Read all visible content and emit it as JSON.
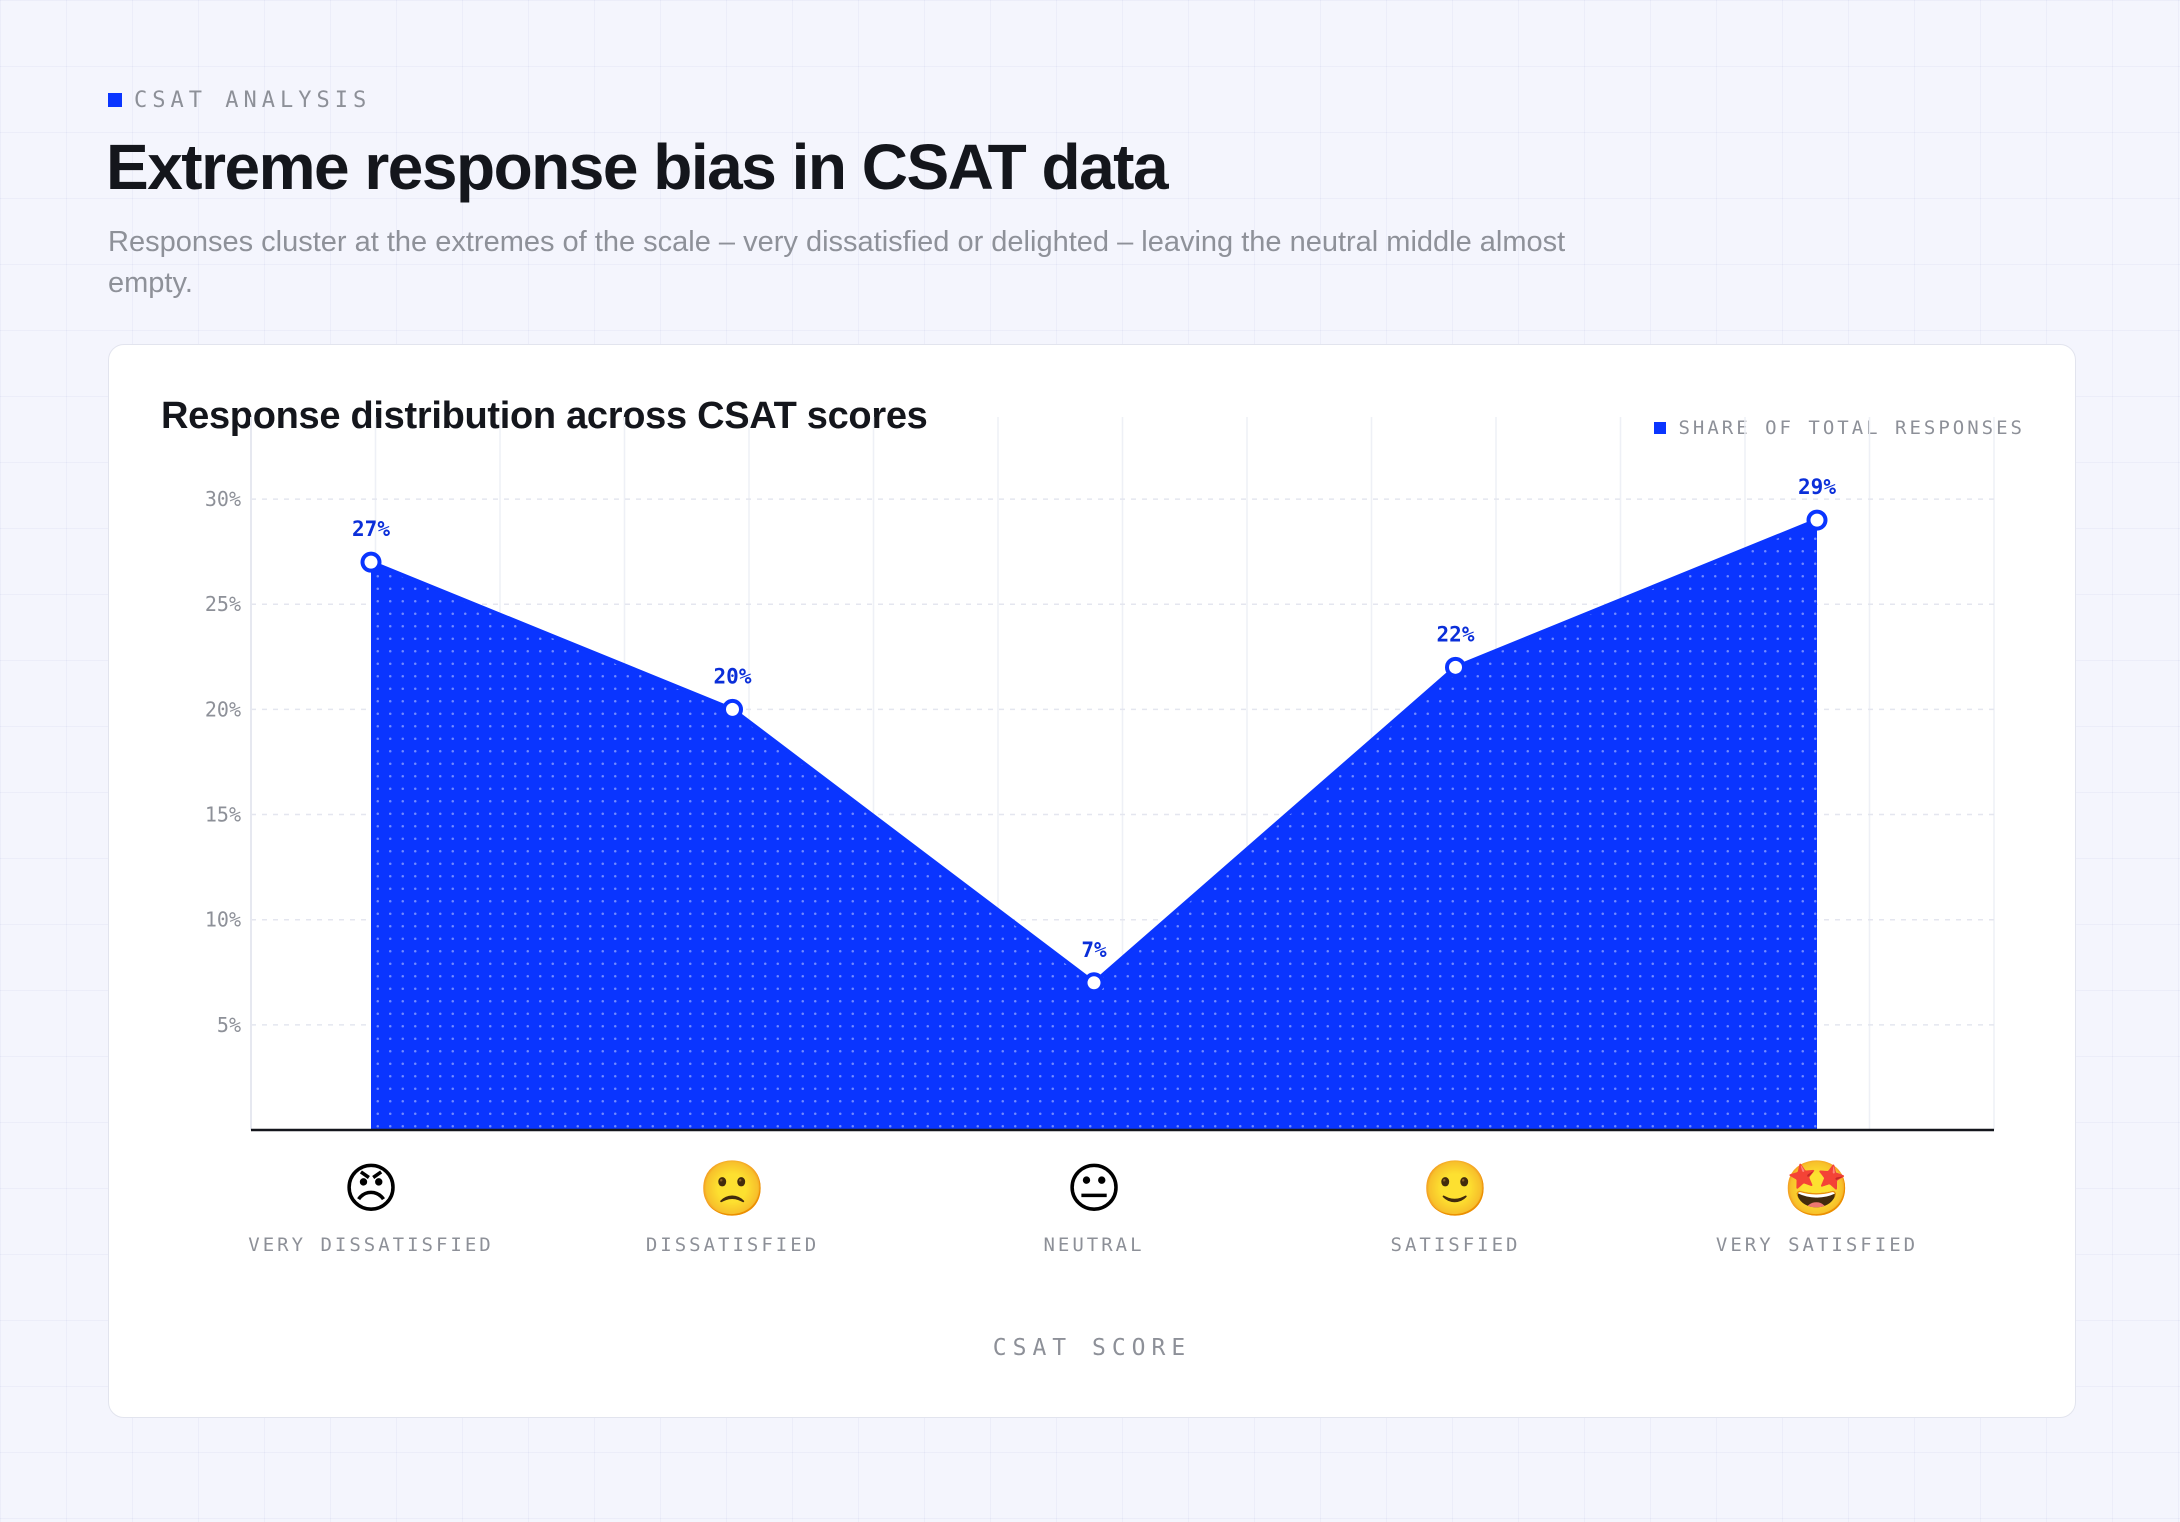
{
  "header": {
    "eyebrow": "CSAT ANALYSIS",
    "title": "Extreme response bias in CSAT data",
    "subtitle": "Responses cluster at the extremes of the scale – very dissatisfied or delighted – leaving the neutral middle almost empty."
  },
  "card": {
    "title": "Response distribution across CSAT scores",
    "legend_label": "SHARE OF TOTAL RESPONSES"
  },
  "colors": {
    "accent": "#0a35ff",
    "data_label": "#0b2fd9",
    "axis": "#14161c",
    "grid": "#e4e6ef",
    "muted_text": "#8d9098"
  },
  "chart_data": {
    "type": "area",
    "categories": [
      "VERY DISSATISFIED",
      "DISSATISFIED",
      "NEUTRAL",
      "SATISFIED",
      "VERY SATISFIED"
    ],
    "category_icons": [
      "😠",
      "🙁",
      "😐",
      "🙂",
      "🤩"
    ],
    "category_icon_names": [
      "angry-face-icon",
      "slightly-frowning-face-icon",
      "neutral-face-icon",
      "slightly-smiling-face-icon",
      "star-struck-face-icon"
    ],
    "series": [
      {
        "values": [
          27,
          20,
          7,
          22,
          29
        ]
      }
    ],
    "data_labels": [
      "27%",
      "20%",
      "7%",
      "22%",
      "29%"
    ],
    "y_ticks": [
      5,
      10,
      15,
      20,
      25,
      30
    ],
    "y_tick_labels": [
      "5%",
      "10%",
      "15%",
      "20%",
      "25%",
      "30%"
    ],
    "ylim": [
      0,
      32
    ],
    "xlabel": "CSAT SCORE",
    "ylabel": "",
    "grid": true,
    "legend_position": "top-right",
    "fill_pattern": "dotted"
  }
}
